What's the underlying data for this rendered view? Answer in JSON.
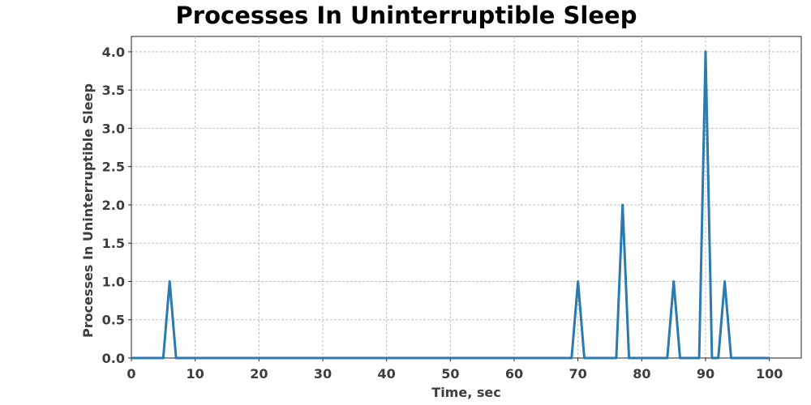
{
  "chart_data": {
    "type": "line",
    "title": "Processes In Uninterruptible Sleep",
    "xlabel": "Time, sec",
    "ylabel": "Processes In Uninterruptible Sleep",
    "xlim": [
      0,
      105
    ],
    "ylim": [
      0,
      4.2
    ],
    "xticks": [
      0,
      10,
      20,
      30,
      40,
      50,
      60,
      70,
      80,
      90,
      100
    ],
    "yticks": [
      0,
      0.5,
      1,
      1.5,
      2,
      2.5,
      3,
      3.5,
      4
    ],
    "xtick_labels": [
      "0",
      "10",
      "20",
      "30",
      "40",
      "50",
      "60",
      "70",
      "80",
      "90",
      "100"
    ],
    "ytick_labels": [
      "0.0",
      "0.5",
      "1.0",
      "1.5",
      "2.0",
      "2.5",
      "3.0",
      "3.5",
      "4.0"
    ],
    "grid": true,
    "series": [
      {
        "color": "#2a7ab0",
        "x": [
          0,
          5,
          6,
          7,
          69,
          70,
          71,
          76,
          77,
          78,
          84,
          85,
          86,
          89,
          90,
          91,
          92,
          93,
          94,
          100
        ],
        "y": [
          0,
          0,
          1,
          0,
          0,
          1,
          0,
          0,
          2,
          0,
          0,
          1,
          0,
          0,
          4,
          0,
          0,
          1,
          0,
          0
        ]
      }
    ]
  }
}
